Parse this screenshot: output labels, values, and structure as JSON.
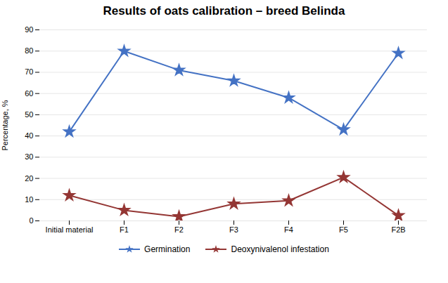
{
  "chart_data": {
    "type": "line",
    "title": "Results of oats calibration – breed Belinda",
    "ylabel": "Percentage, %",
    "categories": [
      "Initial material",
      "F1",
      "F2",
      "F3",
      "F4",
      "F5",
      "F2B"
    ],
    "series": [
      {
        "name": "Germination",
        "color": "#4472C4",
        "marker": "star",
        "values": [
          42,
          80,
          71,
          66,
          58,
          43,
          79
        ]
      },
      {
        "name": "Deoxynivalenol infestation",
        "color": "#943634",
        "marker": "star",
        "values": [
          12,
          5,
          2,
          8,
          9.5,
          20.5,
          2.5
        ]
      }
    ],
    "ylim": [
      0,
      90
    ],
    "yticks": [
      0,
      10,
      20,
      30,
      40,
      50,
      60,
      70,
      80,
      90
    ],
    "grid": true,
    "legend": "bottom"
  }
}
